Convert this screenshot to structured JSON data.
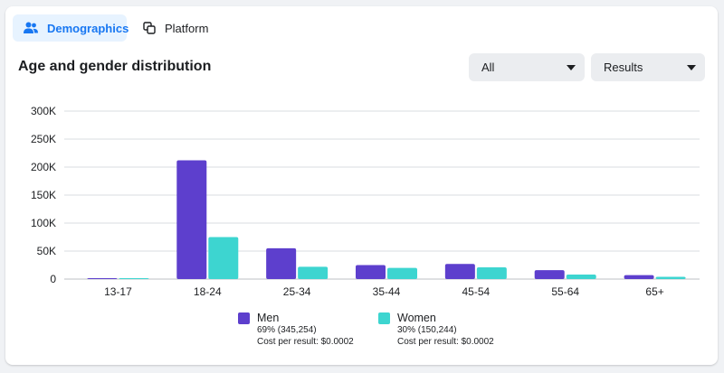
{
  "tabs": [
    {
      "label": "Demographics",
      "icon": "people-icon",
      "active": true
    },
    {
      "label": "Platform",
      "icon": "platform-icon",
      "active": false
    }
  ],
  "title": "Age and gender distribution",
  "filters": {
    "audience": "All",
    "metric": "Results"
  },
  "colors": {
    "men": "#5d3fcd",
    "women": "#3dd5d0",
    "active_tab_bg": "#e7f3ff",
    "active_tab_text": "#1877f2"
  },
  "legend": [
    {
      "name": "Men",
      "percent_line": "69% (345,254)",
      "cost_line": "Cost per result: $0.0002"
    },
    {
      "name": "Women",
      "percent_line": "30% (150,244)",
      "cost_line": "Cost per result: $0.0002"
    }
  ],
  "chart_data": {
    "type": "bar",
    "categories": [
      "13-17",
      "18-24",
      "25-34",
      "35-44",
      "45-54",
      "55-64",
      "65+"
    ],
    "series": [
      {
        "name": "Men",
        "values": [
          1500,
          212000,
          55000,
          25000,
          27000,
          16000,
          7000
        ]
      },
      {
        "name": "Women",
        "values": [
          1500,
          75000,
          22000,
          20000,
          21000,
          8000,
          4000
        ]
      }
    ],
    "ylim": [
      0,
      300000
    ],
    "yticks": [
      "0",
      "50K",
      "100K",
      "150K",
      "200K",
      "250K",
      "300K"
    ],
    "grid": true,
    "legend_position": "bottom"
  }
}
